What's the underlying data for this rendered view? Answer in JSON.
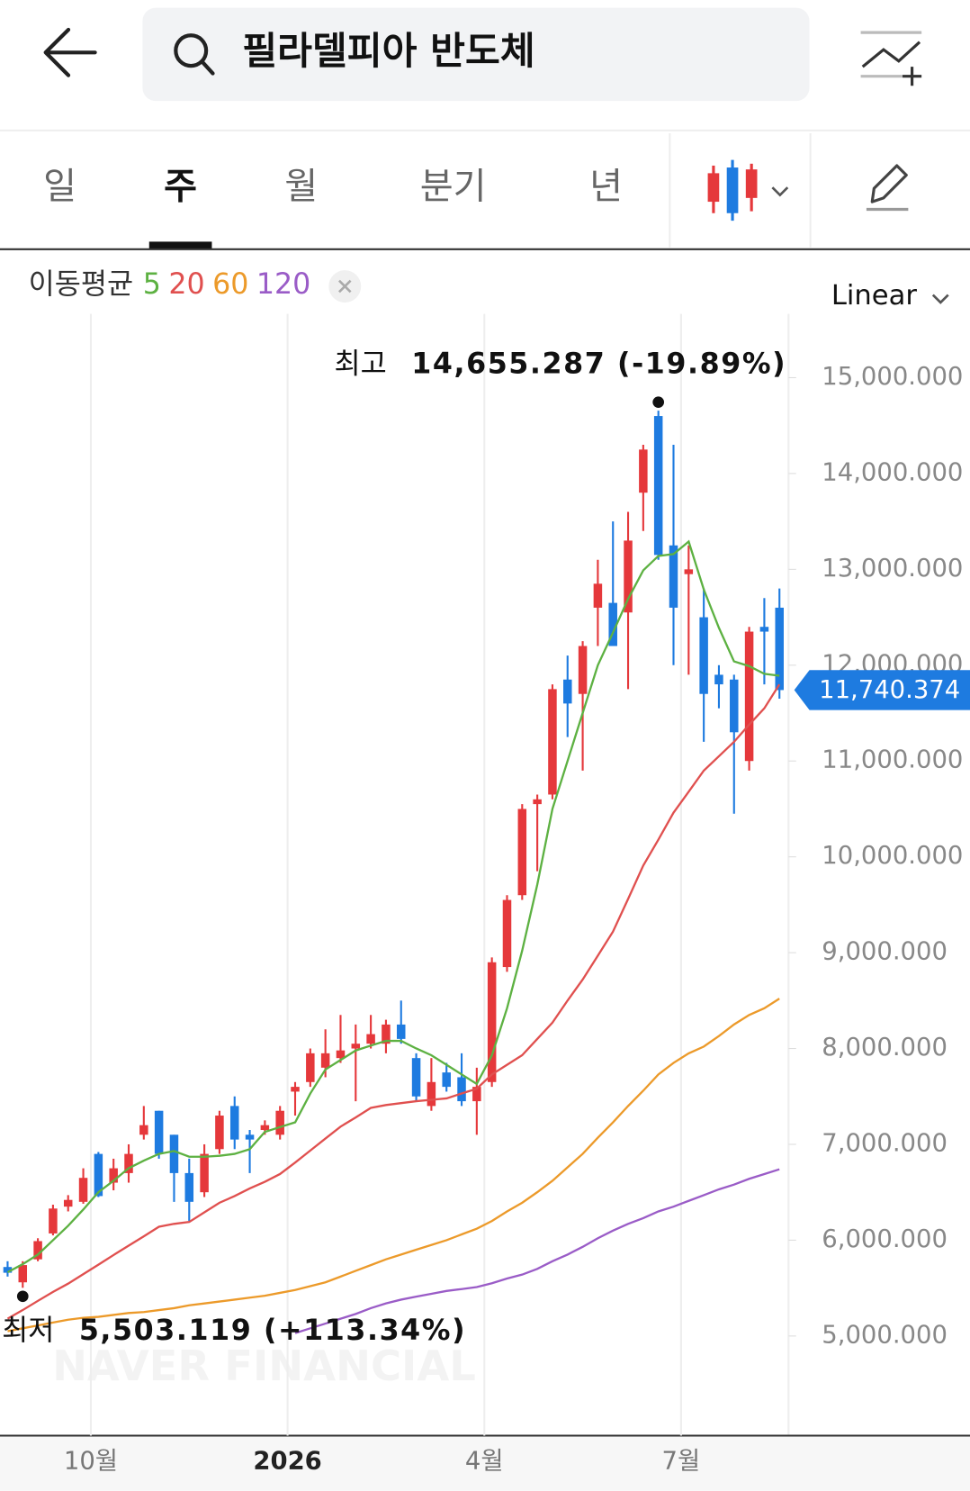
{
  "header": {
    "search_text": "필라델피아 반도체"
  },
  "tabs": {
    "items": [
      "일",
      "주",
      "월",
      "분기",
      "년"
    ],
    "selected": 1
  },
  "scale_mode": "Linear",
  "chart_data": {
    "type": "candlestick",
    "watermark": "NAVER FINANCIAL",
    "categories": [
      null,
      null,
      null,
      null,
      null,
      null,
      "10월",
      null,
      null,
      null,
      null,
      null,
      null,
      null,
      null,
      null,
      null,
      null,
      null,
      "2026",
      null,
      null,
      null,
      null,
      null,
      null,
      null,
      null,
      null,
      null,
      null,
      null,
      "4월",
      null,
      null,
      null,
      null,
      null,
      null,
      null,
      null,
      null,
      null,
      null,
      null,
      "7월",
      null,
      null,
      null,
      null,
      null,
      null
    ],
    "open": [
      5720,
      5560,
      5800,
      6070,
      6350,
      6400,
      6900,
      6600,
      6700,
      7100,
      7350,
      7100,
      6700,
      6500,
      6950,
      7400,
      7100,
      7150,
      7100,
      7550,
      7650,
      7800,
      7900,
      8000,
      8050,
      8050,
      8250,
      7900,
      7400,
      7750,
      7700,
      7450,
      7650,
      8850,
      9600,
      10550,
      10650,
      11850,
      11700,
      12600,
      12650,
      12550,
      13800,
      14600,
      13250,
      12950,
      12500,
      11900,
      11850,
      11000,
      12400,
      12600
    ],
    "high": [
      5780,
      5780,
      6020,
      6370,
      6470,
      6750,
      6920,
      6850,
      7000,
      7400,
      7350,
      7100,
      6850,
      7000,
      7350,
      7500,
      7150,
      7250,
      7400,
      7650,
      8000,
      8200,
      8350,
      8250,
      8350,
      8300,
      8500,
      7950,
      7900,
      7850,
      7950,
      7800,
      8950,
      9600,
      10550,
      10650,
      11800,
      12100,
      12250,
      13100,
      13500,
      13600,
      14300,
      14655.287,
      14300,
      13250,
      12800,
      12000,
      11900,
      12400,
      12700,
      12800
    ],
    "low": [
      5620,
      5503.119,
      5780,
      6050,
      6300,
      6380,
      6450,
      6520,
      6600,
      7050,
      6850,
      6400,
      6200,
      6450,
      6900,
      6950,
      6700,
      7100,
      7050,
      7300,
      7600,
      7700,
      7850,
      7450,
      8000,
      7950,
      8050,
      7450,
      7350,
      7550,
      7400,
      7100,
      7600,
      8800,
      9550,
      9850,
      10600,
      11250,
      10900,
      12200,
      12200,
      11750,
      13400,
      13100,
      12000,
      11900,
      11200,
      11550,
      10450,
      10900,
      11800,
      11650
    ],
    "close": [
      5660,
      5740,
      5990,
      6330,
      6420,
      6650,
      6460,
      6750,
      6900,
      7200,
      6900,
      6700,
      6400,
      6900,
      7300,
      7050,
      7050,
      7200,
      7350,
      7600,
      7950,
      7950,
      7980,
      8050,
      8150,
      8250,
      8100,
      7500,
      7650,
      7600,
      7450,
      7600,
      8900,
      9550,
      10500,
      10600,
      11750,
      11600,
      12200,
      12850,
      12200,
      13300,
      14250,
      13150,
      12600,
      13000,
      11700,
      11800,
      11300,
      12350,
      12350,
      11740.374
    ],
    "up_color": "#e5383b",
    "down_color": "#1e7be0",
    "ma_label": "이동평균",
    "series": [
      {
        "name": "5",
        "color": "#5db142",
        "values": [
          5665,
          5750,
          5850,
          6000,
          6150,
          6320,
          6500,
          6620,
          6750,
          6830,
          6900,
          6930,
          6870,
          6870,
          6880,
          6900,
          6950,
          7130,
          7180,
          7230,
          7530,
          7780,
          7880,
          7980,
          8030,
          8080,
          8080,
          8000,
          7930,
          7830,
          7730,
          7630,
          7930,
          8420,
          9020,
          9710,
          10500,
          11000,
          11500,
          12000,
          12340,
          12690,
          12990,
          13140,
          13160,
          13290,
          12790,
          12390,
          12040,
          11990,
          11910,
          11890
        ]
      },
      {
        "name": "20",
        "color": "#e0504f",
        "values": [
          5180,
          5270,
          5367,
          5460,
          5546,
          5645,
          5745,
          5845,
          5943,
          6040,
          6140,
          6170,
          6190,
          6290,
          6390,
          6460,
          6540,
          6610,
          6690,
          6810,
          6935,
          7060,
          7185,
          7280,
          7380,
          7410,
          7430,
          7450,
          7465,
          7480,
          7530,
          7580,
          7730,
          7830,
          7930,
          8100,
          8270,
          8500,
          8720,
          8970,
          9220,
          9560,
          9910,
          10180,
          10460,
          10680,
          10900,
          11050,
          11200,
          11380,
          11550,
          11800
        ]
      },
      {
        "name": "60",
        "color": "#ec9a2a",
        "values": [
          5050,
          5080,
          5110,
          5140,
          5170,
          5190,
          5200,
          5220,
          5240,
          5250,
          5270,
          5290,
          5320,
          5340,
          5360,
          5380,
          5400,
          5420,
          5450,
          5480,
          5520,
          5560,
          5620,
          5680,
          5740,
          5800,
          5850,
          5900,
          5950,
          6000,
          6060,
          6120,
          6200,
          6300,
          6390,
          6500,
          6620,
          6760,
          6900,
          7070,
          7230,
          7400,
          7560,
          7730,
          7850,
          7950,
          8020,
          8130,
          8250,
          8350,
          8420,
          8520
        ]
      },
      {
        "name": "120",
        "color": "#9a5cc7",
        "values": [
          null,
          null,
          null,
          null,
          null,
          null,
          null,
          null,
          null,
          null,
          null,
          null,
          null,
          null,
          null,
          null,
          null,
          null,
          null,
          5030,
          5080,
          5130,
          5180,
          5230,
          5290,
          5340,
          5380,
          5410,
          5440,
          5470,
          5490,
          5510,
          5550,
          5600,
          5640,
          5700,
          5780,
          5850,
          5930,
          6020,
          6100,
          6170,
          6230,
          6300,
          6350,
          6410,
          6470,
          6530,
          6580,
          6640,
          6690,
          6740
        ]
      }
    ],
    "ylim": [
      3960,
      16340
    ],
    "yticks": [
      {
        "value": 5000,
        "label": "5,000.000"
      },
      {
        "value": 6000,
        "label": "6,000.000"
      },
      {
        "value": 7000,
        "label": "7,000.000"
      },
      {
        "value": 8000,
        "label": "8,000.000"
      },
      {
        "value": 9000,
        "label": "9,000.000"
      },
      {
        "value": 10000,
        "label": "10,000.000"
      },
      {
        "value": 11000,
        "label": "11,000.000"
      },
      {
        "value": 12000,
        "label": "12,000.000"
      },
      {
        "value": 13000,
        "label": "13,000.000"
      },
      {
        "value": 14000,
        "label": "14,000.000"
      },
      {
        "value": 15000,
        "label": "15,000.000"
      }
    ],
    "high_marker": {
      "label": "최고",
      "value": 14655.287,
      "value_label": "14,655.287",
      "change": -19.89,
      "change_label": "(-19.89%)"
    },
    "low_marker": {
      "label": "최저",
      "value": 5503.119,
      "value_label": "5,503.119",
      "change": 113.34,
      "change_label": "(+113.34%)"
    },
    "current_price": {
      "value": 11740.374,
      "value_label": "11,740.374"
    }
  }
}
